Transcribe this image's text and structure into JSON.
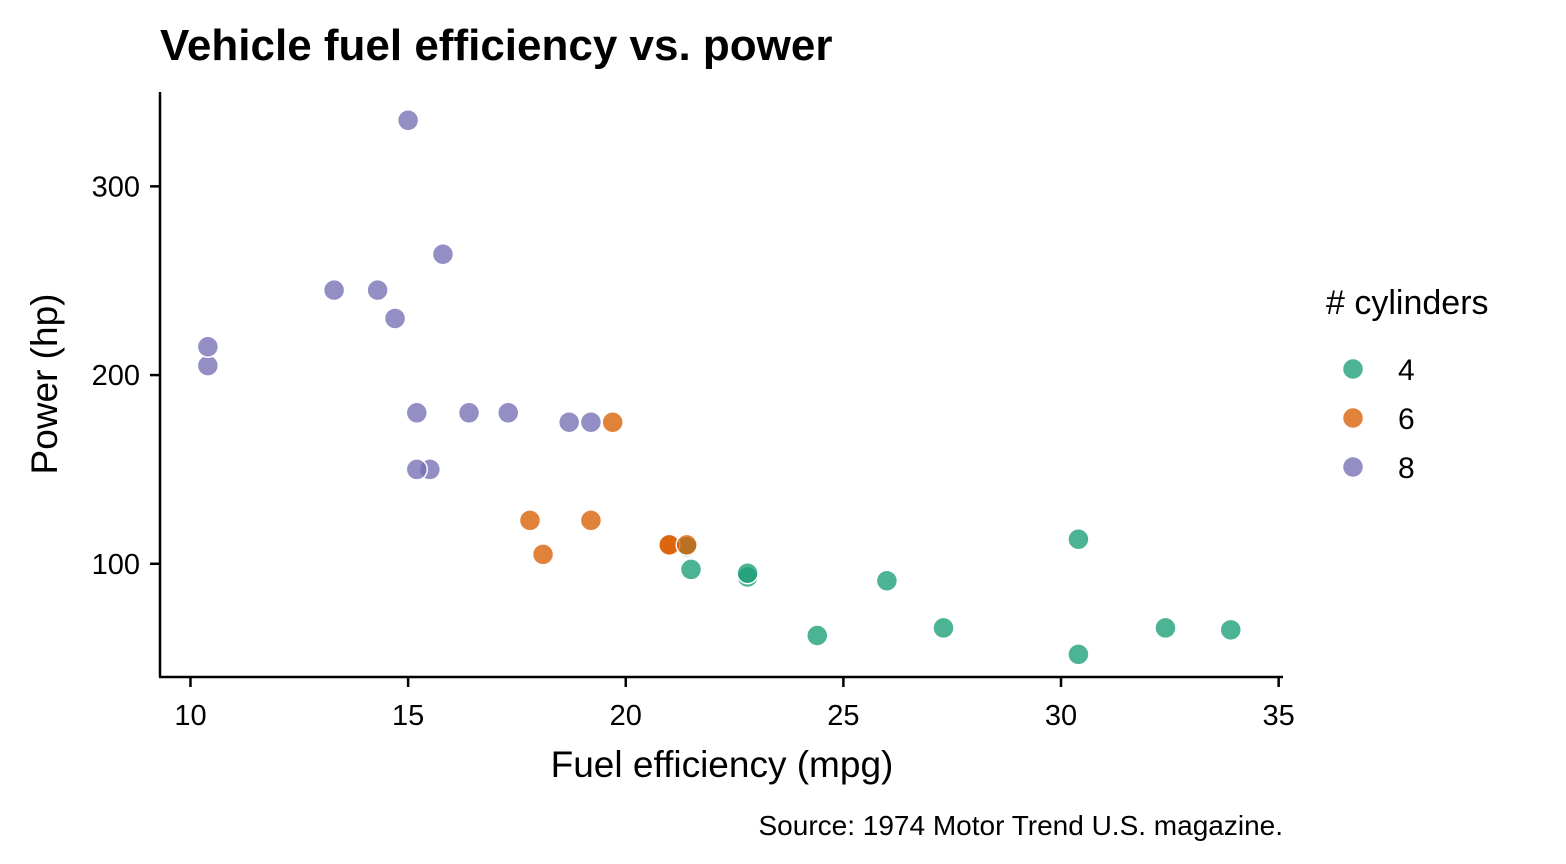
{
  "chart_data": {
    "type": "scatter",
    "title": "Vehicle fuel efficiency vs. power",
    "xlabel": "Fuel efficiency (mpg)",
    "ylabel": "Power (hp)",
    "caption": "Source: 1974 Motor Trend U.S. magazine.",
    "xlim": [
      9.3,
      35.1
    ],
    "ylim": [
      40,
      350
    ],
    "x_ticks": [
      10,
      15,
      20,
      25,
      30,
      35
    ],
    "y_ticks": [
      100,
      200,
      300
    ],
    "grid": false,
    "legend": {
      "title": "# cylinders",
      "position": "right"
    },
    "series": [
      {
        "name": "4",
        "color": "#1b9e77",
        "points": [
          {
            "x": 22.8,
            "y": 93
          },
          {
            "x": 24.4,
            "y": 62
          },
          {
            "x": 22.8,
            "y": 95
          },
          {
            "x": 32.4,
            "y": 66
          },
          {
            "x": 30.4,
            "y": 52
          },
          {
            "x": 33.9,
            "y": 65
          },
          {
            "x": 21.5,
            "y": 97
          },
          {
            "x": 27.3,
            "y": 66
          },
          {
            "x": 26.0,
            "y": 91
          },
          {
            "x": 30.4,
            "y": 113
          },
          {
            "x": 21.4,
            "y": 109
          }
        ]
      },
      {
        "name": "6",
        "color": "#d95f02",
        "points": [
          {
            "x": 21.0,
            "y": 110
          },
          {
            "x": 21.0,
            "y": 110
          },
          {
            "x": 21.4,
            "y": 110
          },
          {
            "x": 18.1,
            "y": 105
          },
          {
            "x": 19.2,
            "y": 123
          },
          {
            "x": 17.8,
            "y": 123
          },
          {
            "x": 19.7,
            "y": 175
          }
        ]
      },
      {
        "name": "8",
        "color": "#7570b3",
        "points": [
          {
            "x": 18.7,
            "y": 175
          },
          {
            "x": 14.3,
            "y": 245
          },
          {
            "x": 16.4,
            "y": 180
          },
          {
            "x": 17.3,
            "y": 180
          },
          {
            "x": 15.2,
            "y": 180
          },
          {
            "x": 10.4,
            "y": 205
          },
          {
            "x": 10.4,
            "y": 215
          },
          {
            "x": 14.7,
            "y": 230
          },
          {
            "x": 15.5,
            "y": 150
          },
          {
            "x": 15.2,
            "y": 150
          },
          {
            "x": 13.3,
            "y": 245
          },
          {
            "x": 19.2,
            "y": 175
          },
          {
            "x": 15.8,
            "y": 264
          },
          {
            "x": 15.0,
            "y": 335
          }
        ]
      }
    ]
  }
}
